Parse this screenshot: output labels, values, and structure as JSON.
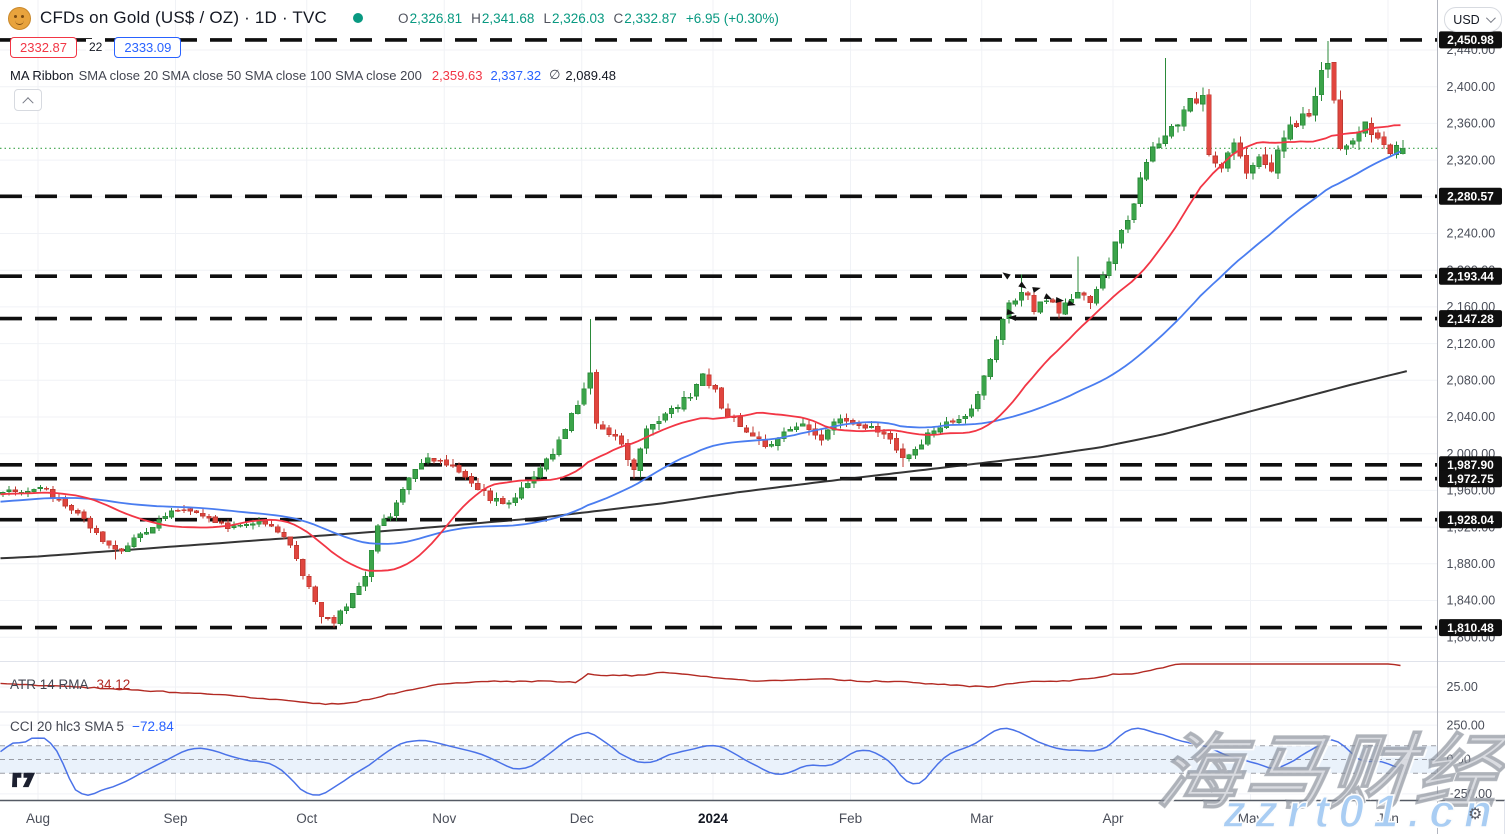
{
  "header": {
    "symbol_title": "CFDs on Gold (US$ / OZ) · 1D · TVC",
    "market_status_color": "#089981",
    "ohlc": {
      "o_label": "O",
      "o": "2,326.81",
      "h_label": "H",
      "h": "2,341.68",
      "l_label": "L",
      "l": "2,326.03",
      "c_label": "C",
      "c": "2,332.87",
      "change": "+6.95 (+0.30%)"
    },
    "price_tag_left": "2332.87",
    "price_tag_mid": "22",
    "price_tag_right": "2333.09",
    "ma_ribbon": {
      "title": "MA Ribbon",
      "params": "SMA close 20 SMA close 50 SMA close 100 SMA close 200",
      "sma20_value": "2,359.63",
      "sma50_value": "2,337.32",
      "avg_symbol": "∅",
      "avg_value": "2,089.48"
    }
  },
  "price_scale": {
    "currency": "USD"
  },
  "watermark": {
    "line1": "海马财经",
    "line2": "zzrt01.cn"
  },
  "panes": {
    "atr": {
      "label": "ATR 14 RMA",
      "value": "34.12"
    },
    "cci": {
      "label": "CCI 20 hlc3 SMA 5",
      "value": "−72.84"
    }
  },
  "chart_data": {
    "type": "candlestick",
    "title": "CFDs on Gold (US$/OZ), 1D — candles with MA Ribbon (SMA 20/50/100/200), ATR(14) and CCI(20,hlc3,SMA5) panes",
    "price_axis": {
      "range_visible": [
        1775,
        2462
      ],
      "ticks": [
        {
          "value": 2440,
          "label": "2,440.00"
        },
        {
          "value": 2400,
          "label": "2,400.00"
        },
        {
          "value": 2360,
          "label": "2,360.00"
        },
        {
          "value": 2320,
          "label": "2,320.00"
        },
        {
          "value": 2280,
          "label": "2,280.00"
        },
        {
          "value": 2240,
          "label": "2,240.00"
        },
        {
          "value": 2200,
          "label": "2,200.00"
        },
        {
          "value": 2160,
          "label": "2,160.00"
        },
        {
          "value": 2120,
          "label": "2,120.00"
        },
        {
          "value": 2080,
          "label": "2,080.00"
        },
        {
          "value": 2040,
          "label": "2,040.00"
        },
        {
          "value": 2000,
          "label": "2,000.00"
        },
        {
          "value": 1960,
          "label": "1,960.00"
        },
        {
          "value": 1920,
          "label": "1,920.00"
        },
        {
          "value": 1880,
          "label": "1,880.00"
        },
        {
          "value": 1840,
          "label": "1,840.00"
        },
        {
          "value": 1800,
          "label": "1,800.00"
        }
      ]
    },
    "level_lines": [
      {
        "price": 2450.98,
        "label": "2,450.98"
      },
      {
        "price": 2280.57,
        "label": "2,280.57"
      },
      {
        "price": 2193.44,
        "label": "2,193.44"
      },
      {
        "price": 2147.28,
        "label": "2,147.28"
      },
      {
        "price": 1987.9,
        "label": "1,987.90"
      },
      {
        "price": 1972.75,
        "label": "1,972.75"
      },
      {
        "price": 1928.04,
        "label": "1,928.04"
      },
      {
        "price": 1810.48,
        "label": "1,810.48"
      }
    ],
    "current_price": {
      "value": 2332.87
    },
    "time_axis": [
      {
        "label": "Aug",
        "day": 0
      },
      {
        "label": "Sep",
        "day": 22
      },
      {
        "label": "Oct",
        "day": 43
      },
      {
        "label": "Nov",
        "day": 65
      },
      {
        "label": "Dec",
        "day": 87
      },
      {
        "label": "2024",
        "day": 108,
        "emphasis": true
      },
      {
        "label": "Feb",
        "day": 130
      },
      {
        "label": "Mar",
        "day": 151
      },
      {
        "label": "Apr",
        "day": 172
      },
      {
        "label": "May",
        "day": 194
      },
      {
        "label": "Jun",
        "day": 216
      }
    ],
    "close_keyframes": [
      [
        -60,
        1930
      ],
      [
        -20,
        1955
      ],
      [
        -6,
        1958
      ],
      [
        0,
        1963
      ],
      [
        4,
        1945
      ],
      [
        8,
        1920
      ],
      [
        12,
        1893
      ],
      [
        14,
        1900
      ],
      [
        18,
        1921
      ],
      [
        22,
        1940
      ],
      [
        26,
        1933
      ],
      [
        30,
        1921
      ],
      [
        34,
        1926
      ],
      [
        38,
        1917
      ],
      [
        40,
        1902
      ],
      [
        42,
        1868
      ],
      [
        45,
        1824
      ],
      [
        47,
        1816
      ],
      [
        49,
        1836
      ],
      [
        52,
        1868
      ],
      [
        54,
        1922
      ],
      [
        56,
        1933
      ],
      [
        59,
        1976
      ],
      [
        62,
        1992
      ],
      [
        65,
        1989
      ],
      [
        68,
        1974
      ],
      [
        72,
        1951
      ],
      [
        75,
        1946
      ],
      [
        79,
        1974
      ],
      [
        82,
        1999
      ],
      [
        85,
        2041
      ],
      [
        87,
        2068
      ],
      [
        88,
        2088
      ],
      [
        89,
        2029
      ],
      [
        92,
        2021
      ],
      [
        95,
        1981
      ],
      [
        97,
        2031
      ],
      [
        100,
        2041
      ],
      [
        103,
        2057
      ],
      [
        106,
        2083
      ],
      [
        108,
        2067
      ],
      [
        110,
        2041
      ],
      [
        113,
        2027
      ],
      [
        116,
        2007
      ],
      [
        119,
        2024
      ],
      [
        122,
        2031
      ],
      [
        125,
        2017
      ],
      [
        128,
        2041
      ],
      [
        131,
        2031
      ],
      [
        134,
        2025
      ],
      [
        137,
        2007
      ],
      [
        138,
        1994
      ],
      [
        140,
        2003
      ],
      [
        143,
        2027
      ],
      [
        146,
        2037
      ],
      [
        149,
        2047
      ],
      [
        151,
        2085
      ],
      [
        153,
        2127
      ],
      [
        155,
        2161
      ],
      [
        157,
        2179
      ],
      [
        159,
        2159
      ],
      [
        161,
        2167
      ],
      [
        163,
        2157
      ],
      [
        165,
        2171
      ],
      [
        166,
        2179
      ],
      [
        168,
        2167
      ],
      [
        170,
        2191
      ],
      [
        172,
        2231
      ],
      [
        174,
        2255
      ],
      [
        176,
        2297
      ],
      [
        178,
        2335
      ],
      [
        180,
        2344
      ],
      [
        182,
        2361
      ],
      [
        184,
        2383
      ],
      [
        186,
        2391
      ],
      [
        187,
        2329
      ],
      [
        189,
        2311
      ],
      [
        191,
        2337
      ],
      [
        193,
        2307
      ],
      [
        195,
        2321
      ],
      [
        197,
        2309
      ],
      [
        199,
        2347
      ],
      [
        201,
        2361
      ],
      [
        203,
        2369
      ],
      [
        205,
        2415
      ],
      [
        206,
        2424
      ],
      [
        207,
        2379
      ],
      [
        208,
        2338
      ],
      [
        210,
        2341
      ],
      [
        212,
        2357
      ],
      [
        214,
        2343
      ],
      [
        216,
        2331
      ],
      [
        217,
        2339
      ],
      [
        218,
        2332.9
      ]
    ],
    "volatility_keyframes": [
      [
        -60,
        11
      ],
      [
        -6,
        11
      ],
      [
        10,
        11
      ],
      [
        25,
        10
      ],
      [
        40,
        10
      ],
      [
        47,
        9
      ],
      [
        55,
        13
      ],
      [
        62,
        13
      ],
      [
        75,
        13
      ],
      [
        85,
        14
      ],
      [
        88,
        16
      ],
      [
        95,
        15
      ],
      [
        105,
        15
      ],
      [
        115,
        14
      ],
      [
        125,
        13
      ],
      [
        135,
        13
      ],
      [
        145,
        12
      ],
      [
        152,
        12
      ],
      [
        158,
        14
      ],
      [
        165,
        14
      ],
      [
        172,
        16
      ],
      [
        180,
        19
      ],
      [
        186,
        20
      ],
      [
        192,
        20
      ],
      [
        200,
        19
      ],
      [
        207,
        21
      ],
      [
        214,
        19
      ],
      [
        218,
        17
      ]
    ],
    "wick_events": [
      {
        "day": 12,
        "low": 1884.9
      },
      {
        "day": 45,
        "low": 1815.0
      },
      {
        "day": 47,
        "low": 1810.5
      },
      {
        "day": 88,
        "high": 2146.8
      },
      {
        "day": 95,
        "low": 1973.2
      },
      {
        "day": 138,
        "low": 1985.5
      },
      {
        "day": 157,
        "high": 2195.2
      },
      {
        "day": 166,
        "high": 2214.9
      },
      {
        "day": 180,
        "high": 2431.3
      },
      {
        "day": 206,
        "high": 2449.9
      }
    ],
    "last_candle": {
      "open": 2326.81,
      "high": 2341.68,
      "low": 2326.03,
      "close": 2332.87
    },
    "sma200_keyframes": [
      [
        -6,
        1886
      ],
      [
        0,
        1888
      ],
      [
        20,
        1898
      ],
      [
        40,
        1908
      ],
      [
        60,
        1918
      ],
      [
        80,
        1930
      ],
      [
        100,
        1946
      ],
      [
        112,
        1958
      ],
      [
        125,
        1969
      ],
      [
        140,
        1981
      ],
      [
        150,
        1989
      ],
      [
        160,
        1997
      ],
      [
        170,
        2007
      ],
      [
        180,
        2021
      ],
      [
        190,
        2039
      ],
      [
        200,
        2057
      ],
      [
        210,
        2075
      ],
      [
        219,
        2090
      ]
    ],
    "indicators": {
      "atr": {
        "label": "ATR 14 RMA",
        "last_value": 34.12,
        "axis_ticks": [
          {
            "value": 25,
            "label": "25.00"
          }
        ],
        "keyframes": [
          [
            -6,
            26.5
          ],
          [
            10,
            24.5
          ],
          [
            20,
            23
          ],
          [
            30,
            21.5
          ],
          [
            40,
            19
          ],
          [
            46,
            17.5
          ],
          [
            50,
            18
          ],
          [
            55,
            21
          ],
          [
            60,
            24
          ],
          [
            65,
            26.5
          ],
          [
            72,
            27.5
          ],
          [
            80,
            27.5
          ],
          [
            86,
            27
          ],
          [
            88,
            30.5
          ],
          [
            92,
            30
          ],
          [
            96,
            30
          ],
          [
            100,
            31.5
          ],
          [
            104,
            30.5
          ],
          [
            108,
            29
          ],
          [
            112,
            28
          ],
          [
            116,
            27.5
          ],
          [
            120,
            28
          ],
          [
            126,
            28.5
          ],
          [
            132,
            27.5
          ],
          [
            138,
            27.5
          ],
          [
            142,
            26.5
          ],
          [
            148,
            25.5
          ],
          [
            152,
            25
          ],
          [
            156,
            26.5
          ],
          [
            160,
            27.5
          ],
          [
            164,
            27.5
          ],
          [
            168,
            28.5
          ],
          [
            172,
            30.5
          ],
          [
            176,
            31
          ],
          [
            180,
            33.5
          ],
          [
            184,
            36
          ],
          [
            188,
            38
          ],
          [
            192,
            38.5
          ],
          [
            196,
            37.5
          ],
          [
            200,
            36.5
          ],
          [
            204,
            37
          ],
          [
            207,
            38.5
          ],
          [
            210,
            38
          ],
          [
            214,
            36.5
          ],
          [
            218,
            34.2
          ]
        ]
      },
      "cci": {
        "label": "CCI 20 hlc3 SMA 5",
        "last_value": -72.84,
        "period": 20,
        "smoothing": 5,
        "band": [
          -100,
          100
        ],
        "axis_ticks": [
          {
            "value": 250,
            "label": "250.00"
          },
          {
            "value": 0,
            "label": "0.00"
          },
          {
            "value": -250,
            "label": "−250.00"
          }
        ]
      }
    },
    "arrow_markers": [
      [
        1007,
        312,
        10
      ],
      [
        1020,
        284,
        35
      ],
      [
        1033,
        290,
        -15
      ],
      [
        1045,
        296,
        25
      ],
      [
        1056,
        300,
        5
      ],
      [
        1068,
        303,
        15
      ],
      [
        1016,
        318,
        185
      ],
      [
        1009,
        277,
        215
      ]
    ],
    "colors": {
      "up": "#3BA44A",
      "up_border": "#2B8A3A",
      "down": "#E0453E",
      "down_border": "#BF3A32",
      "sma20": "#F23645",
      "sma50": "#4A7DF0",
      "sma200": "#1F1F1F",
      "atr_line": "#B22A23",
      "cci_line": "#4A72E8",
      "cci_band_fill": "#EAF2FB",
      "level": "#0F0F0F",
      "grid": "#F0F2F6",
      "current_dotted": "#3BA44A",
      "axis_text": "#4A4E59"
    }
  }
}
